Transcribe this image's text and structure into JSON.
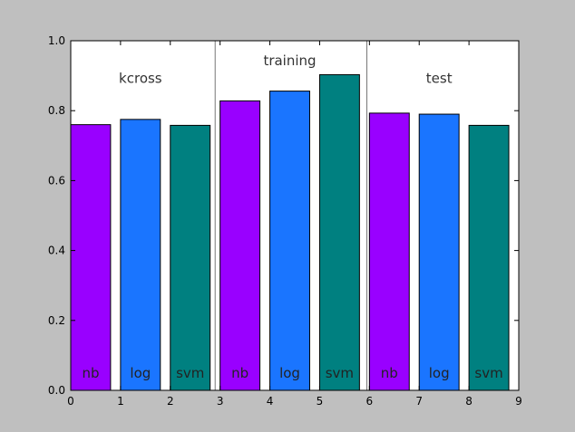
{
  "chart_data": {
    "type": "bar",
    "title": "",
    "xlabel": "",
    "ylabel": "",
    "xlim": [
      0,
      9
    ],
    "ylim": [
      0,
      1.0
    ],
    "x_ticks": [
      "0",
      "1",
      "2",
      "3",
      "4",
      "5",
      "6",
      "7",
      "8",
      "9"
    ],
    "y_ticks": [
      "0.0",
      "0.2",
      "0.4",
      "0.6",
      "0.8",
      "1.0"
    ],
    "grid": false,
    "colors": {
      "nb": "#9900ff",
      "log": "#1a75ff",
      "svm": "#008080",
      "background": "#bfbfbf",
      "plot_area": "#ffffff"
    },
    "groups": [
      {
        "label": "kcross",
        "label_y": 0.88,
        "bars": [
          {
            "label": "nb",
            "value": 0.76
          },
          {
            "label": "log",
            "value": 0.775
          },
          {
            "label": "svm",
            "value": 0.758
          }
        ]
      },
      {
        "label": "training",
        "label_y": 0.93,
        "bars": [
          {
            "label": "nb",
            "value": 0.828
          },
          {
            "label": "log",
            "value": 0.856
          },
          {
            "label": "svm",
            "value": 0.903
          }
        ]
      },
      {
        "label": "test",
        "label_y": 0.88,
        "bars": [
          {
            "label": "nb",
            "value": 0.793
          },
          {
            "label": "log",
            "value": 0.79
          },
          {
            "label": "svm",
            "value": 0.758
          }
        ]
      }
    ],
    "group_dividers_x": [
      2.9,
      5.95
    ]
  }
}
